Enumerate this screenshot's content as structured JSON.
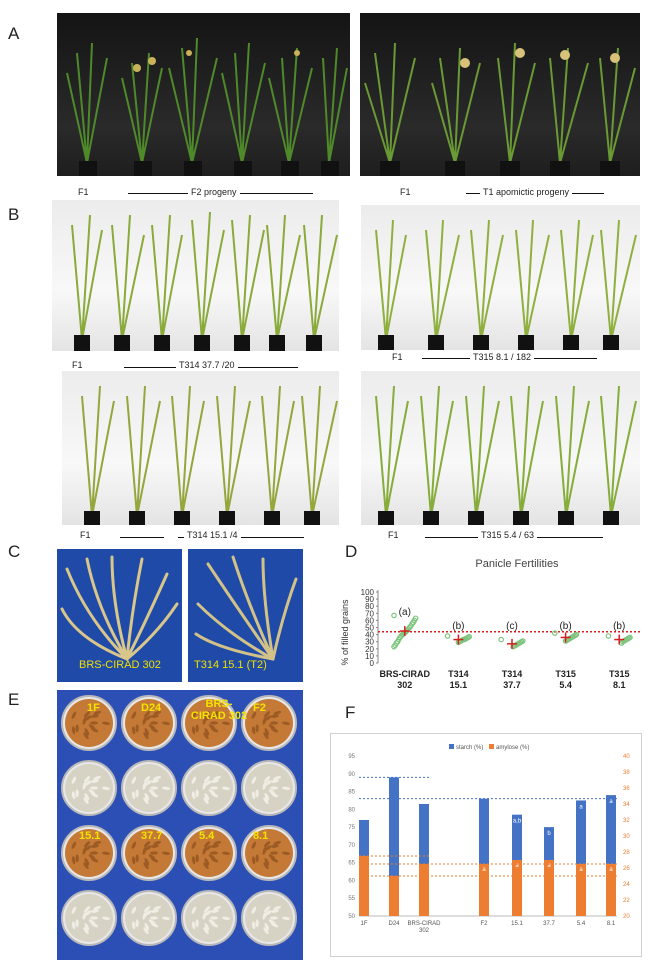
{
  "panels": {
    "A": "A",
    "B": "B",
    "C": "C",
    "D": "D",
    "E": "E",
    "F": "F"
  },
  "panelA": {
    "left": {
      "f1": "F1",
      "group": "F2 progeny"
    },
    "right": {
      "f1": "F1",
      "group": "T1 apomictic progeny"
    }
  },
  "panelB": {
    "tl": {
      "f1": "F1",
      "group": "T314 37.7 /20"
    },
    "tr": {
      "f1": "F1",
      "group": "T315 8.1 / 182"
    },
    "bl": {
      "f1": "F1",
      "group": "T314 15.1 /4"
    },
    "br": {
      "f1": "F1",
      "group": "T315 5.4 /  63"
    }
  },
  "panelC": {
    "left": "BRS-CIRAD 302",
    "right": "T314 15.1 (T2)"
  },
  "panelE": {
    "labels": [
      "1F",
      "D24",
      "BRS-CIRAD 302",
      "F2",
      "15.1",
      "37.7",
      "5.4",
      "8.1"
    ]
  },
  "chart_data": [
    {
      "type": "scatter",
      "title": "Panicle Fertilities",
      "ylabel": "% of filled grains",
      "ylim": [
        0,
        100
      ],
      "yticks": [
        0,
        10,
        20,
        30,
        40,
        50,
        60,
        70,
        80,
        90,
        100
      ],
      "reference_line": 44,
      "categories": [
        "BRS-CIRAD 302",
        "T314 15.1",
        "T314 37.7",
        "T315 5.4",
        "T315 8.1"
      ],
      "category_lines": [
        [
          "BRS-CIRAD",
          "302"
        ],
        [
          "T314",
          "15.1"
        ],
        [
          "T314",
          "37.7"
        ],
        [
          "T315",
          "5.4"
        ],
        [
          "T315",
          "8.1"
        ]
      ],
      "groups": [
        "(a)",
        "(b)",
        "(c)",
        "(b)",
        "(b)"
      ],
      "means": [
        45,
        33,
        27,
        36,
        33
      ],
      "points": [
        [
          67,
          63,
          60,
          57,
          55,
          52,
          50,
          48,
          46,
          44,
          43,
          42,
          40,
          38,
          36,
          33,
          30,
          28,
          25,
          23
        ],
        [
          38,
          37,
          36,
          35,
          34,
          33,
          33,
          32,
          31,
          30,
          29
        ],
        [
          33,
          31,
          30,
          29,
          28,
          27,
          26,
          25,
          24,
          23
        ],
        [
          42,
          40,
          39,
          38,
          37,
          36,
          35,
          34,
          33,
          32,
          31
        ],
        [
          38,
          36,
          35,
          34,
          33,
          32,
          31,
          30,
          28
        ]
      ],
      "colors": {
        "points": "#7cc47c",
        "mean": "#d62020",
        "line": "#d62020"
      }
    },
    {
      "type": "bar",
      "series": [
        {
          "name": "starch (%)",
          "color": "#4472c4"
        },
        {
          "name": "amylose (%)",
          "color": "#ed7d31"
        }
      ],
      "categories": [
        "1F",
        "D24",
        "BRS-CIRAD 302",
        "F2",
        "15.1",
        "37.7",
        "5.4",
        "8.1"
      ],
      "category_lines": [
        [
          "1F"
        ],
        [
          "D24"
        ],
        [
          "BRS-CIRAD",
          "302"
        ],
        [
          "F2"
        ],
        [
          "15.1"
        ],
        [
          "37.7"
        ],
        [
          "5.4"
        ],
        [
          "8.1"
        ]
      ],
      "starch": [
        77,
        89,
        81.5,
        83,
        78.5,
        75,
        82.5,
        84
      ],
      "amylose": [
        27.5,
        25,
        26.5,
        26.5,
        27,
        27,
        26.5,
        26.5
      ],
      "labels_starch": [
        "",
        "",
        "",
        "",
        "a,b",
        "b",
        "a",
        "a"
      ],
      "labels_amylose": [
        "",
        "",
        "",
        "a",
        "a",
        "a",
        "a",
        "a"
      ],
      "ylim_left": [
        50,
        95
      ],
      "yticks_left": [
        50,
        55,
        60,
        65,
        70,
        75,
        80,
        85,
        90,
        95
      ],
      "ylim_right": [
        20,
        40
      ],
      "yticks_right": [
        20,
        22,
        24,
        26,
        28,
        30,
        32,
        34,
        36,
        38,
        40
      ]
    }
  ]
}
